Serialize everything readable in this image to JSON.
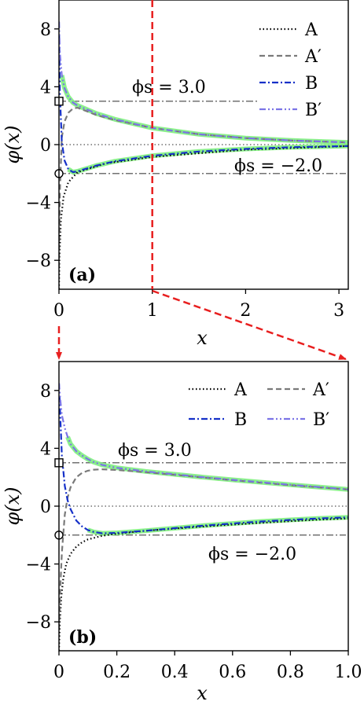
{
  "figure": {
    "ylabel": "φ(x)",
    "xlabel": "x",
    "colors": {
      "A": "#000000",
      "A_prime": "#7a7a7a",
      "B": "#1530c8",
      "B_prime": "#7b74e6",
      "highlight": "#7ff07f",
      "guide": "#444444",
      "zoom_arrow": "#e82020"
    }
  },
  "chart_data": [
    {
      "type": "line",
      "panel_label": "(a)",
      "xlabel": "x",
      "ylabel": "φ(x)",
      "xlim": [
        0,
        3.1
      ],
      "ylim": [
        -10,
        10
      ],
      "xticks": [
        0,
        1,
        2,
        3
      ],
      "yticks": [
        -8,
        -4,
        0,
        4,
        8
      ],
      "legend": {
        "placement": "top-right",
        "entries": [
          "A",
          "A′",
          "B",
          "B′"
        ]
      },
      "annotations": {
        "upper": "ϕs = 3.0",
        "lower": "ϕs = −2.0",
        "zoom_marker_x": 1
      },
      "boundary_values": [
        3.0,
        -2.0
      ],
      "series": [
        {
          "name": "A",
          "style": "dotted",
          "x": [
            0,
            0.005,
            0.02,
            0.05,
            0.1,
            0.2,
            0.5,
            1.0,
            2.0,
            3.1
          ],
          "y": [
            -10,
            -7.8,
            -5.2,
            -3.6,
            -2.6,
            -1.9,
            -1.3,
            -0.85,
            -0.35,
            -0.1
          ]
        },
        {
          "name": "A′",
          "style": "dashed",
          "x": [
            0,
            0.01,
            0.03,
            0.06,
            0.1,
            0.15,
            0.2,
            0.4,
            0.6,
            1.0,
            1.5,
            2.0,
            2.5,
            3.1
          ],
          "y": [
            -8.5,
            -3.2,
            0.5,
            1.6,
            2.2,
            2.5,
            2.55,
            2.05,
            1.7,
            1.15,
            0.72,
            0.45,
            0.28,
            0.15
          ]
        },
        {
          "name": "B",
          "style": "dashdot",
          "x": [
            0,
            0.01,
            0.03,
            0.06,
            0.1,
            0.15,
            0.2,
            0.4,
            0.6,
            1.0,
            1.5,
            2.0,
            2.5,
            3.1
          ],
          "y": [
            8.5,
            3.5,
            0.2,
            -1.1,
            -1.7,
            -1.9,
            -1.85,
            -1.45,
            -1.15,
            -0.77,
            -0.48,
            -0.3,
            -0.18,
            -0.1
          ]
        },
        {
          "name": "B′",
          "style": "dashdotdot",
          "x": [
            0,
            0.01,
            0.03,
            0.06,
            0.1,
            0.15,
            0.2,
            0.4,
            0.6,
            1.0,
            1.5,
            2.0,
            2.5,
            3.1
          ],
          "y": [
            8.5,
            6.3,
            4.8,
            3.9,
            3.3,
            2.9,
            2.7,
            2.15,
            1.75,
            1.15,
            0.72,
            0.45,
            0.28,
            0.15
          ]
        }
      ]
    },
    {
      "type": "line",
      "panel_label": "(b)",
      "xlabel": "x",
      "ylabel": "φ(x)",
      "xlim": [
        0,
        1.0
      ],
      "ylim": [
        -10,
        10
      ],
      "xticks": [
        0,
        0.2,
        0.4,
        0.6,
        0.8,
        1.0
      ],
      "xtick_labels": [
        "0",
        "0.2",
        "0.4",
        "0.6",
        "0.8",
        "1.0"
      ],
      "yticks": [
        -8,
        -4,
        0,
        4,
        8
      ],
      "legend": {
        "placement": "top-right",
        "columns": 2,
        "entries": [
          "A",
          "A′",
          "B",
          "B′"
        ]
      },
      "annotations": {
        "upper": "ϕs = 3.0",
        "lower": "ϕs = −2.0"
      },
      "boundary_values": [
        3.0,
        -2.0
      ],
      "series": [
        {
          "name": "A",
          "style": "dotted",
          "x": [
            0,
            0.003,
            0.008,
            0.015,
            0.025,
            0.04,
            0.06,
            0.08,
            0.1,
            0.15,
            0.2,
            0.3,
            0.4,
            0.5,
            0.6,
            0.7,
            0.8,
            0.9,
            1.0
          ],
          "y": [
            -10,
            -8.0,
            -6.3,
            -5.0,
            -4.0,
            -3.3,
            -2.8,
            -2.5,
            -2.3,
            -2.05,
            -1.9,
            -1.7,
            -1.55,
            -1.4,
            -1.27,
            -1.15,
            -1.03,
            -0.93,
            -0.85
          ]
        },
        {
          "name": "A′",
          "style": "dashed",
          "x": [
            0,
            0.005,
            0.01,
            0.02,
            0.03,
            0.04,
            0.06,
            0.08,
            0.1,
            0.12,
            0.15,
            0.2,
            0.3,
            0.4,
            0.5,
            0.6,
            0.7,
            0.8,
            0.9,
            1.0
          ],
          "y": [
            -8.5,
            -5.5,
            -3.2,
            -0.6,
            0.6,
            1.3,
            2.0,
            2.3,
            2.45,
            2.52,
            2.55,
            2.5,
            2.35,
            2.17,
            1.98,
            1.8,
            1.62,
            1.45,
            1.3,
            1.15
          ]
        },
        {
          "name": "B",
          "style": "dashdot",
          "x": [
            0,
            0.005,
            0.01,
            0.02,
            0.03,
            0.04,
            0.06,
            0.08,
            0.1,
            0.12,
            0.15,
            0.2,
            0.3,
            0.4,
            0.5,
            0.6,
            0.7,
            0.8,
            0.9,
            1.0
          ],
          "y": [
            8.5,
            6.0,
            3.5,
            1.4,
            0.4,
            -0.2,
            -1.0,
            -1.4,
            -1.65,
            -1.78,
            -1.88,
            -1.85,
            -1.7,
            -1.52,
            -1.35,
            -1.2,
            -1.06,
            -0.95,
            -0.85,
            -0.77
          ]
        },
        {
          "name": "B′",
          "style": "dashdotdot",
          "x": [
            0,
            0.005,
            0.01,
            0.02,
            0.03,
            0.04,
            0.06,
            0.08,
            0.1,
            0.12,
            0.15,
            0.2,
            0.3,
            0.4,
            0.5,
            0.6,
            0.7,
            0.8,
            0.9,
            1.0
          ],
          "y": [
            8.5,
            7.3,
            6.3,
            5.4,
            4.8,
            4.3,
            3.8,
            3.5,
            3.25,
            3.05,
            2.85,
            2.65,
            2.4,
            2.2,
            2.0,
            1.82,
            1.65,
            1.48,
            1.32,
            1.15
          ]
        }
      ]
    }
  ]
}
